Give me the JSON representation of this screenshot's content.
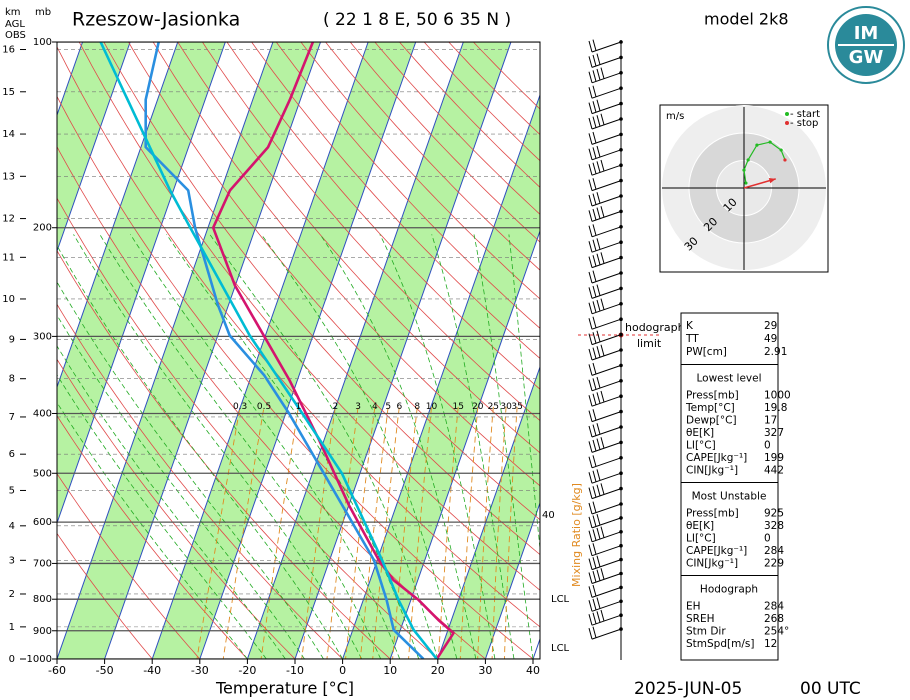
{
  "chart_data": {
    "type": "skewt",
    "title": "Rzeszow-Jasionka",
    "subtitle": "( 22 1 8 E, 50 6 35 N )",
    "model": "model 2k8",
    "xlabel": "Temperature [°C]",
    "date": "2025-JUN-05",
    "time": "00 UTC",
    "xlim": [
      -60,
      40
    ],
    "xticks": [
      -60,
      -50,
      -40,
      -30,
      -20,
      -10,
      0,
      10,
      20,
      30,
      40
    ],
    "ylim": [
      1000,
      100
    ],
    "yticks": [
      100,
      200,
      300,
      400,
      500,
      600,
      700,
      800,
      900,
      1000
    ],
    "y_scale": "log",
    "ylabel": "mb",
    "km_label": [
      "km",
      "AGL",
      "OBS"
    ],
    "km_ticks": [
      0,
      1,
      2,
      3,
      4,
      5,
      6,
      7,
      8,
      9,
      10,
      11,
      12,
      13,
      14,
      15,
      16
    ],
    "mixing_label": "Mixing Ratio [g/kg]",
    "mixing_ratios": [
      0.3,
      0.5,
      1,
      2,
      3,
      4,
      5,
      6,
      8,
      10,
      15,
      20,
      25,
      30,
      35
    ],
    "annotations": [
      "40",
      "LCL",
      "LCL"
    ],
    "hodograph_limit": [
      "hodograph",
      "limit"
    ],
    "series": [
      {
        "color": "#d4146e",
        "pressure": [
          1000,
          908,
          865,
          802,
          745,
          691,
          563,
          442,
          353,
          282,
          248,
          200,
          174,
          148,
          124,
          100
        ],
        "values": [
          19.8,
          21.4,
          17.3,
          11.6,
          4.9,
          0.3,
          -10,
          -21,
          -31.7,
          -43.4,
          -50.1,
          -58.9,
          -58.1,
          -53.3,
          -52.2,
          -51.6
        ]
      },
      {
        "color": "#2a8fe0",
        "pressure": [
          1000,
          897,
          802,
          691,
          500,
          400,
          347,
          299,
          267,
          200,
          174,
          148,
          124,
          100
        ],
        "values": [
          17,
          8.6,
          4.9,
          -0.7,
          -17.6,
          -29.3,
          -37.3,
          -47.5,
          -52.2,
          -62.7,
          -66.9,
          -79,
          -82.5,
          -84
        ]
      },
      {
        "color": "#00bcd4",
        "pressure": [
          1000,
          897,
          802,
          691,
          500,
          400,
          299,
          200,
          174,
          100
        ],
        "values": [
          19.8,
          12.8,
          7.4,
          1,
          -13.8,
          -26.5,
          -43.3,
          -63.7,
          -70.7,
          -96.2
        ]
      }
    ]
  },
  "hodograph": {
    "units": "m/s",
    "legend": [
      "- start",
      "- stop"
    ],
    "rings": [
      10,
      20,
      30
    ],
    "u": [
      0.7,
      0,
      1.5,
      4.7,
      9.5,
      13.5,
      14.9
    ],
    "v": [
      1.8,
      6.5,
      10.2,
      15.6,
      16.7,
      13.8,
      10.2
    ],
    "trace_color": "#22bb22",
    "start_color": "#22bb22",
    "stop_color": "#e03030",
    "storm_dir": 254,
    "storm_speed": 12
  },
  "logo": {
    "top": "IM",
    "bottom": "GW"
  },
  "indices": [
    {
      "rows": [
        [
          "K",
          29
        ],
        [
          "TT",
          49
        ],
        [
          "PW[cm]",
          2.91
        ]
      ]
    },
    {
      "title": "Lowest level",
      "rows": [
        [
          "Press[mb]",
          1000
        ],
        [
          "Temp[°C]",
          19.8
        ],
        [
          "Dewp[°C]",
          17
        ],
        [
          "θE[K]",
          327
        ],
        [
          "LI[°C]",
          0
        ],
        [
          "CAPE[Jkg⁻¹]",
          199
        ],
        [
          "CIN[Jkg⁻¹]",
          442
        ]
      ]
    },
    {
      "title": "Most Unstable",
      "rows": [
        [
          "Press[mb]",
          925
        ],
        [
          "θE[K]",
          328
        ],
        [
          "LI[°C]",
          0
        ],
        [
          "CAPE[Jkg⁻¹]",
          284
        ],
        [
          "CIN[Jkg⁻¹]",
          229
        ]
      ]
    },
    {
      "title": "Hodograph",
      "rows": [
        [
          "EH",
          284
        ],
        [
          "SREH",
          268
        ],
        [
          "Stm Dir",
          {
            "value": 254,
            "label": "254°"
          }
        ],
        [
          "StmSpd[m/s]",
          12
        ]
      ]
    }
  ]
}
